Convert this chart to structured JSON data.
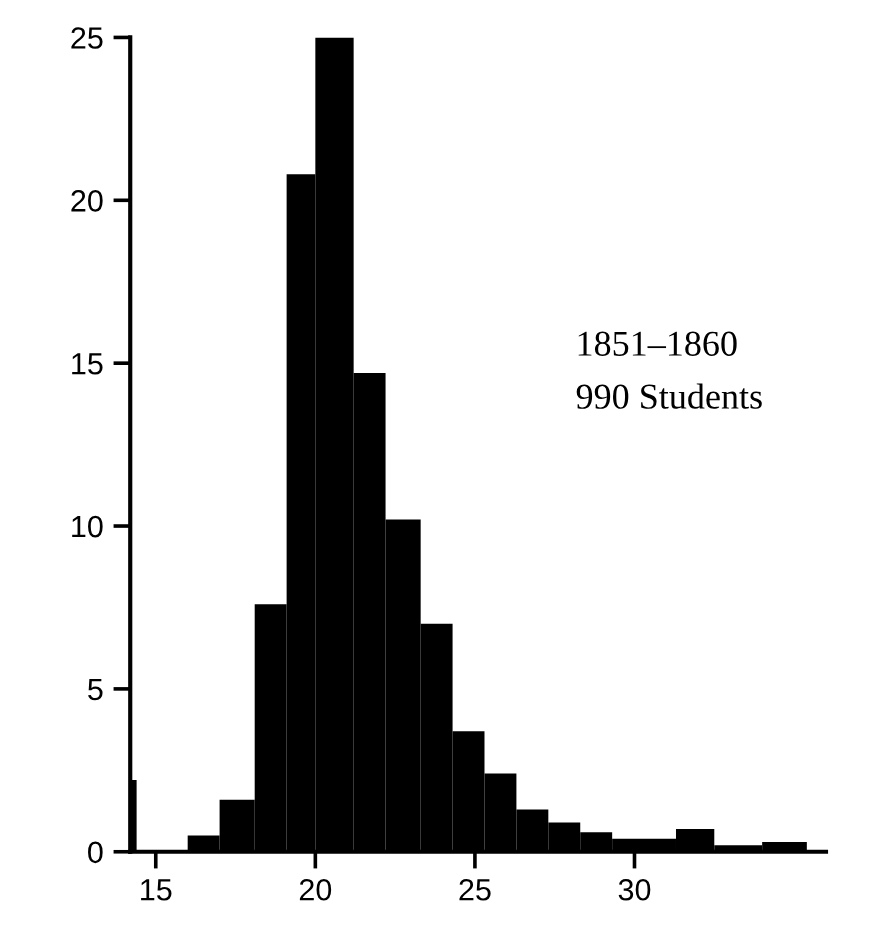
{
  "chart_data": {
    "type": "histogram",
    "bins": [
      14.2,
      14.4,
      16,
      17,
      18.1,
      19.1,
      20,
      21.2,
      22.2,
      23.3,
      24.3,
      25.3,
      26.3,
      27.3,
      28.3,
      29.3,
      31.3,
      32.5,
      34,
      35.4
    ],
    "values": [
      2.2,
      0,
      0.5,
      1.6,
      7.6,
      20.8,
      25,
      14.7,
      10.2,
      7.0,
      3.7,
      2.4,
      1.3,
      0.9,
      0.6,
      0.4,
      0.7,
      0.2,
      0.3
    ],
    "color": "#000000",
    "xlim": [
      14.2,
      36
    ],
    "xticks": [
      15,
      20,
      25,
      30
    ],
    "ylim": [
      0,
      25
    ],
    "yticks": [
      0,
      5,
      10,
      15,
      20,
      25
    ],
    "grid": false,
    "annotations": [
      "1851–1860",
      "990 Students"
    ]
  }
}
